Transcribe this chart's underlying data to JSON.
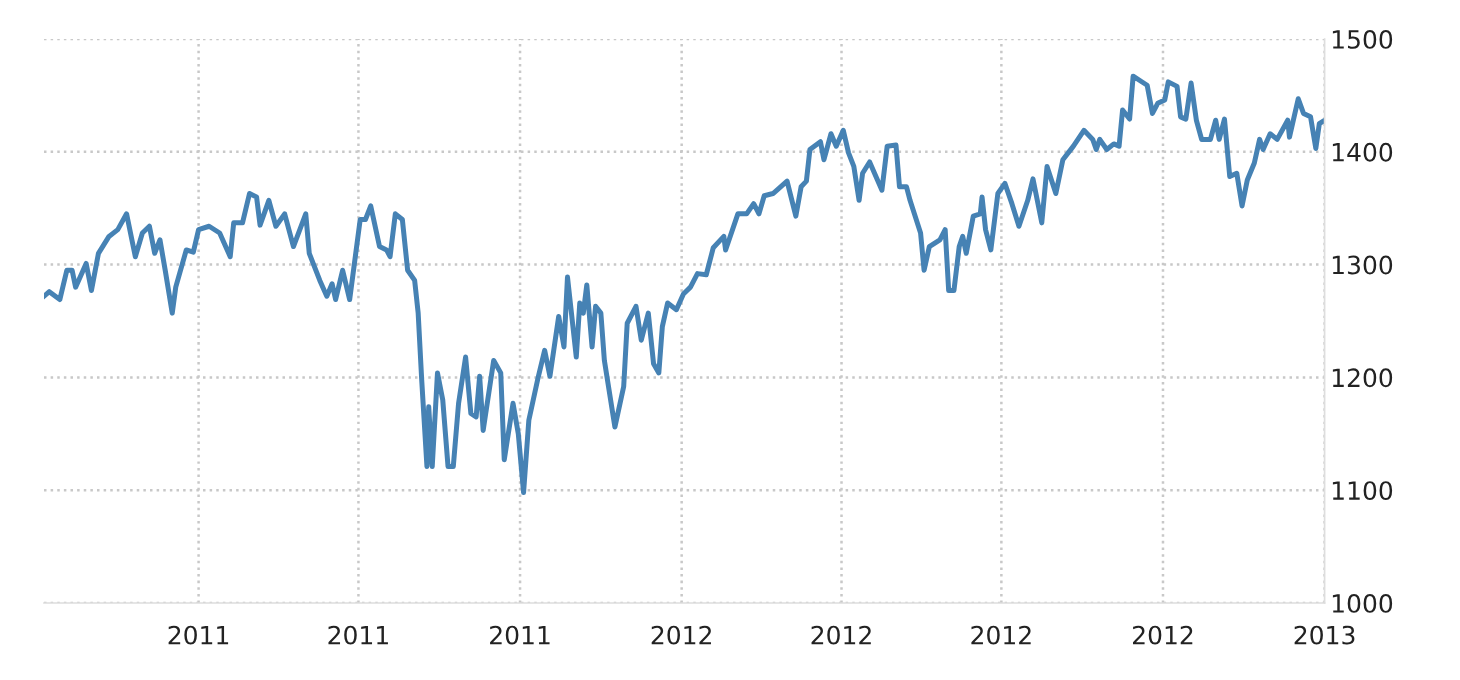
{
  "chart_data": {
    "type": "line",
    "color": "#4682b4",
    "grid": true,
    "line_style": "solid",
    "marker": "none",
    "xlim": [
      "2011-01-03",
      "2013-01-01"
    ],
    "xticks": [
      {
        "value": "2011-04-01",
        "label": "2011"
      },
      {
        "value": "2011-07-01",
        "label": "2011"
      },
      {
        "value": "2011-10-01",
        "label": "2011"
      },
      {
        "value": "2012-01-01",
        "label": "2012"
      },
      {
        "value": "2012-04-01",
        "label": "2012"
      },
      {
        "value": "2012-07-01",
        "label": "2012"
      },
      {
        "value": "2012-10-01",
        "label": "2012"
      },
      {
        "value": "2013-01-01",
        "label": "2013"
      }
    ],
    "ylim": [
      1000,
      1500
    ],
    "yticks": [
      1000,
      1100,
      1200,
      1300,
      1400,
      1500
    ],
    "x": [
      "2011-01-03",
      "2011-01-06",
      "2011-01-12",
      "2011-01-16",
      "2011-01-19",
      "2011-01-21",
      "2011-01-27",
      "2011-01-30",
      "2011-02-03",
      "2011-02-09",
      "2011-02-14",
      "2011-02-19",
      "2011-02-24",
      "2011-02-28",
      "2011-03-04",
      "2011-03-07",
      "2011-03-10",
      "2011-03-13",
      "2011-03-17",
      "2011-03-19",
      "2011-03-25",
      "2011-03-29",
      "2011-04-01",
      "2011-04-07",
      "2011-04-13",
      "2011-04-19",
      "2011-04-21",
      "2011-04-26",
      "2011-04-30",
      "2011-05-04",
      "2011-05-06",
      "2011-05-11",
      "2011-05-15",
      "2011-05-20",
      "2011-05-25",
      "2011-06-01",
      "2011-06-03",
      "2011-06-09",
      "2011-06-13",
      "2011-06-16",
      "2011-06-18",
      "2011-06-22",
      "2011-06-26",
      "2011-07-02",
      "2011-07-05",
      "2011-07-08",
      "2011-07-13",
      "2011-07-17",
      "2011-07-19",
      "2011-07-22",
      "2011-07-26",
      "2011-07-29",
      "2011-08-02",
      "2011-08-04",
      "2011-08-06",
      "2011-08-09",
      "2011-08-10",
      "2011-08-12",
      "2011-08-15",
      "2011-08-18",
      "2011-08-21",
      "2011-08-24",
      "2011-08-27",
      "2011-08-31",
      "2011-09-03",
      "2011-09-06",
      "2011-09-08",
      "2011-09-10",
      "2011-09-16",
      "2011-09-20",
      "2011-09-22",
      "2011-09-27",
      "2011-09-30",
      "2011-10-03",
      "2011-10-06",
      "2011-10-11",
      "2011-10-15",
      "2011-10-18",
      "2011-10-23",
      "2011-10-26",
      "2011-10-28",
      "2011-11-02",
      "2011-11-04",
      "2011-11-06",
      "2011-11-08",
      "2011-11-11",
      "2011-11-13",
      "2011-11-16",
      "2011-11-18",
      "2011-11-24",
      "2011-11-29",
      "2011-12-01",
      "2011-12-06",
      "2011-12-09",
      "2011-12-13",
      "2011-12-16",
      "2011-12-19",
      "2011-12-21",
      "2011-12-24",
      "2011-12-29",
      "2012-01-02",
      "2012-01-06",
      "2012-01-10",
      "2012-01-15",
      "2012-01-19",
      "2012-01-25",
      "2012-01-26",
      "2012-02-02",
      "2012-02-07",
      "2012-02-11",
      "2012-02-14",
      "2012-02-17",
      "2012-02-22",
      "2012-03-01",
      "2012-03-06",
      "2012-03-09",
      "2012-03-12",
      "2012-03-14",
      "2012-03-20",
      "2012-03-22",
      "2012-03-26",
      "2012-03-29",
      "2012-04-02",
      "2012-04-05",
      "2012-04-08",
      "2012-04-11",
      "2012-04-13",
      "2012-04-17",
      "2012-04-24",
      "2012-04-27",
      "2012-05-02",
      "2012-05-04",
      "2012-05-08",
      "2012-05-10",
      "2012-05-16",
      "2012-05-18",
      "2012-05-21",
      "2012-05-27",
      "2012-05-30",
      "2012-06-01",
      "2012-06-04",
      "2012-06-07",
      "2012-06-09",
      "2012-06-11",
      "2012-06-15",
      "2012-06-19",
      "2012-06-20",
      "2012-06-22",
      "2012-06-25",
      "2012-06-29",
      "2012-07-03",
      "2012-07-07",
      "2012-07-11",
      "2012-07-16",
      "2012-07-19",
      "2012-07-24",
      "2012-07-27",
      "2012-08-01",
      "2012-08-05",
      "2012-08-11",
      "2012-08-17",
      "2012-08-22",
      "2012-08-24",
      "2012-08-26",
      "2012-08-30",
      "2012-09-03",
      "2012-09-06",
      "2012-09-08",
      "2012-09-12",
      "2012-09-14",
      "2012-09-20",
      "2012-09-22",
      "2012-09-25",
      "2012-09-28",
      "2012-10-02",
      "2012-10-04",
      "2012-10-09",
      "2012-10-11",
      "2012-10-14",
      "2012-10-17",
      "2012-10-20",
      "2012-10-23",
      "2012-10-28",
      "2012-10-31",
      "2012-11-02",
      "2012-11-05",
      "2012-11-08",
      "2012-11-12",
      "2012-11-15",
      "2012-11-18",
      "2012-11-22",
      "2012-11-25",
      "2012-11-27",
      "2012-12-01",
      "2012-12-05",
      "2012-12-11",
      "2012-12-12",
      "2012-12-17",
      "2012-12-20",
      "2012-12-24",
      "2012-12-27",
      "2012-12-29",
      "2012-12-31"
    ],
    "values": [
      1272,
      1276,
      1269,
      1295,
      1295,
      1280,
      1301,
      1277,
      1310,
      1325,
      1331,
      1345,
      1307,
      1328,
      1334,
      1310,
      1322,
      1295,
      1257,
      1280,
      1313,
      1311,
      1331,
      1334,
      1328,
      1307,
      1337,
      1337,
      1363,
      1360,
      1335,
      1357,
      1334,
      1345,
      1316,
      1345,
      1310,
      1286,
      1272,
      1283,
      1269,
      1295,
      1269,
      1340,
      1340,
      1352,
      1316,
      1313,
      1307,
      1345,
      1340,
      1295,
      1286,
      1257,
      1198,
      1121,
      1174,
      1121,
      1204,
      1180,
      1121,
      1121,
      1177,
      1218,
      1168,
      1165,
      1201,
      1153,
      1215,
      1204,
      1127,
      1177,
      1150,
      1098,
      1162,
      1198,
      1224,
      1201,
      1254,
      1227,
      1289,
      1218,
      1266,
      1257,
      1282,
      1227,
      1263,
      1257,
      1215,
      1156,
      1192,
      1248,
      1263,
      1233,
      1257,
      1212,
      1204,
      1245,
      1266,
      1260,
      1274,
      1280,
      1292,
      1291,
      1315,
      1325,
      1313,
      1345,
      1345,
      1354,
      1345,
      1361,
      1363,
      1374,
      1343,
      1369,
      1374,
      1402,
      1409,
      1393,
      1416,
      1405,
      1419,
      1399,
      1387,
      1357,
      1381,
      1391,
      1366,
      1405,
      1406,
      1369,
      1369,
      1357,
      1328,
      1295,
      1316,
      1322,
      1331,
      1277,
      1277,
      1316,
      1325,
      1310,
      1343,
      1345,
      1360,
      1331,
      1313,
      1363,
      1372,
      1354,
      1334,
      1357,
      1376,
      1337,
      1387,
      1363,
      1393,
      1405,
      1419,
      1411,
      1402,
      1411,
      1402,
      1407,
      1405,
      1437,
      1429,
      1467,
      1461,
      1459,
      1434,
      1443,
      1446,
      1462,
      1458,
      1431,
      1429,
      1461,
      1428,
      1411,
      1411,
      1428,
      1411,
      1429,
      1378,
      1381,
      1352,
      1375,
      1390,
      1411,
      1402,
      1416,
      1411,
      1428,
      1413,
      1447,
      1434,
      1431,
      1403,
      1425,
      1427
    ]
  }
}
